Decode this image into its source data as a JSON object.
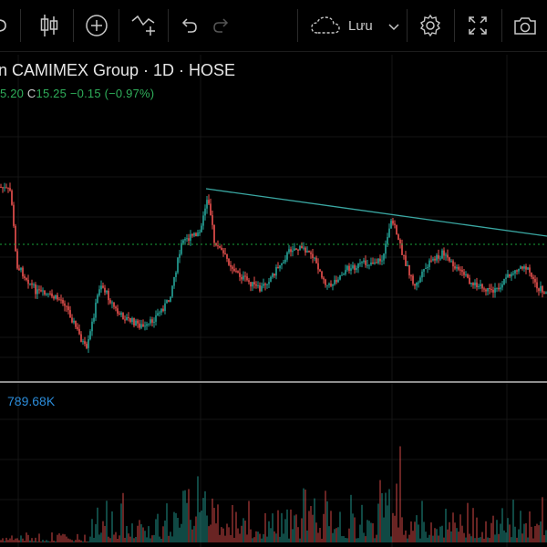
{
  "toolbar": {
    "save_label": "Lưu",
    "icons": [
      "candles-icon",
      "add-indicator-icon",
      "compare-icon",
      "undo-icon",
      "redo-icon",
      "cloud-icon",
      "chevron-down-icon",
      "settings-icon",
      "fullscreen-icon",
      "camera-icon"
    ]
  },
  "legend": {
    "title": "n CAMIMEX Group · 1D · HOSE",
    "low_partial": "5.20",
    "close_label": "C",
    "close_value": "15.25",
    "change": "−0.15 (−0.97%)"
  },
  "volume": {
    "label": "789.68K"
  },
  "chart_data": {
    "type": "candlestick",
    "trendline": "descending resistance line from mid-chart peak",
    "last_close": 15.25,
    "colors": {
      "up": "#26a69a",
      "down": "#ef5350",
      "price_line": "#1aa33a",
      "trendline": "#3aa7a2",
      "volume_label": "#2b8bd8"
    }
  }
}
